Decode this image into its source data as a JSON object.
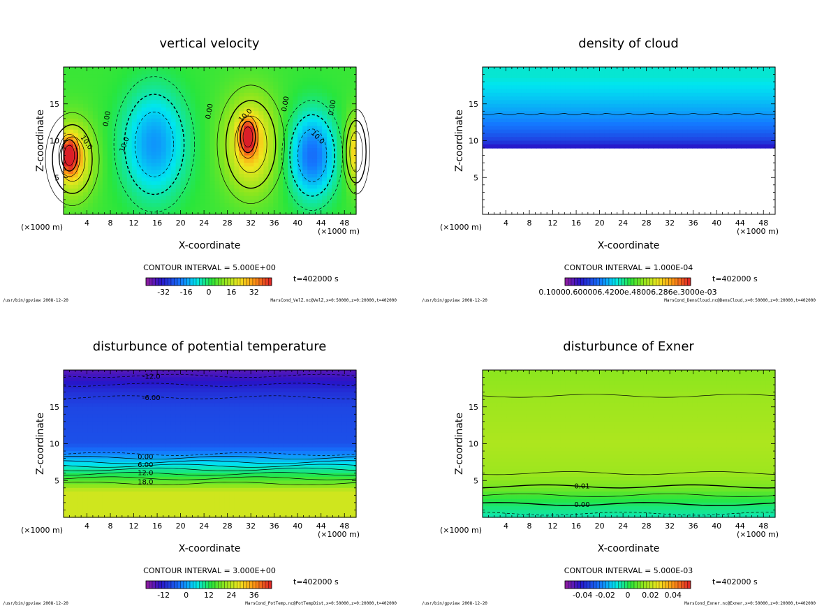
{
  "footer_left": "/usr/bin/gpview  2008-12-20",
  "x_unit_label": "(×1000 m)",
  "x_axis_label": "X-coordinate",
  "y_axis_label": "Z-coordinate",
  "time_label": "t=402000 s",
  "chart_data": [
    {
      "id": "velz",
      "type": "heatmap",
      "title": "vertical velocity",
      "xlabel": "X-coordinate",
      "ylabel": "Z-coordinate",
      "x_unit": "(×1000 m)",
      "xlim": [
        0,
        50
      ],
      "ylim": [
        0,
        20
      ],
      "xticks": [
        4,
        8,
        12,
        16,
        20,
        24,
        28,
        32,
        36,
        40,
        44,
        48
      ],
      "yticks": [
        5,
        10,
        15
      ],
      "contour_interval": "CONTOUR INTERVAL = 5.000E+00",
      "colorbar_ticks": [
        "-32",
        "-16",
        "0",
        "16",
        "32"
      ],
      "colorbar_range": [
        -40,
        40
      ],
      "time": "t=402000 s",
      "footer_right": "MarsCond_VelZ.nc@VelZ,x=0:50000,z=0:20000,t=402000",
      "field": {
        "background": 3,
        "cells": [
          {
            "x": 1.5,
            "z": 7.5,
            "rx": 4,
            "rz": 5.5,
            "v": 20
          },
          {
            "x": 1.0,
            "z": 8.0,
            "rx": 1.6,
            "rz": 2.5,
            "v": 30
          },
          {
            "x": 15.5,
            "z": 9.5,
            "rx": 6,
            "rz": 8,
            "v": -18
          },
          {
            "x": 32.0,
            "z": 9.5,
            "rx": 5,
            "rz": 7,
            "v": 20
          },
          {
            "x": 31.5,
            "z": 10.5,
            "rx": 1.5,
            "rz": 2.5,
            "v": 30
          },
          {
            "x": 42.5,
            "z": 8.0,
            "rx": 4.5,
            "rz": 6.5,
            "v": -22
          },
          {
            "x": 50.0,
            "z": 8.5,
            "rx": 2,
            "rz": 5,
            "v": 20
          }
        ]
      },
      "contour_labels": [
        {
          "text": "0.00",
          "x": 7.3,
          "z": 13.0,
          "rot": -80
        },
        {
          "text": "10.0",
          "x": 4.0,
          "z": 9.8,
          "rot": 55
        },
        {
          "text": "10.0",
          "x": 10.3,
          "z": 9.5,
          "rot": -70
        },
        {
          "text": "0.00",
          "x": 24.8,
          "z": 14.0,
          "rot": -80
        },
        {
          "text": "10.0",
          "x": 31.0,
          "z": 13.5,
          "rot": -45
        },
        {
          "text": "0.00",
          "x": 37.8,
          "z": 15.0,
          "rot": -80
        },
        {
          "text": "10.0",
          "x": 43.5,
          "z": 10.5,
          "rot": 45
        },
        {
          "text": "0.00",
          "x": 45.8,
          "z": 14.5,
          "rot": -80
        }
      ]
    },
    {
      "id": "denscloud",
      "type": "heatmap",
      "title": "density of cloud",
      "xlabel": "X-coordinate",
      "ylabel": "Z-coordinate",
      "x_unit": "(×1000 m)",
      "xlim": [
        0,
        50
      ],
      "ylim": [
        0,
        20
      ],
      "xticks": [
        4,
        8,
        12,
        16,
        20,
        24,
        28,
        32,
        36,
        40,
        44,
        48
      ],
      "yticks": [
        5,
        10,
        15
      ],
      "contour_interval": "CONTOUR INTERVAL = 1.000E-04",
      "colorbar_ticks": [
        "0.10000.600006.4200e.48006.286e.3000e-03"
      ],
      "colorbar_range": [
        0,
        1
      ],
      "time": "t=402000 s",
      "footer_right": "MarsCond_DensCloud.nc@DensCloud,x=0:50000,z=0:20000,t=402000",
      "cloud_base_z": 9.0,
      "cloud_top_z": 20.0,
      "contour_z": 13.6
    },
    {
      "id": "pottemp",
      "type": "heatmap",
      "title": "disturbunce of potential temperature",
      "xlabel": "X-coordinate",
      "ylabel": "Z-coordinate",
      "x_unit": "(×1000 m)",
      "xlim": [
        0,
        50
      ],
      "ylim": [
        0,
        20
      ],
      "xticks": [
        4,
        8,
        12,
        16,
        20,
        24,
        28,
        32,
        36,
        40,
        44,
        48
      ],
      "yticks": [
        5,
        10,
        15
      ],
      "contour_interval": "CONTOUR INTERVAL = 3.000E+00",
      "colorbar_ticks": [
        "-12",
        "0",
        "12",
        "24",
        "36"
      ],
      "colorbar_range": [
        -18,
        42
      ],
      "time": "t=402000 s",
      "footer_right": "MarsCond_PotTemp.nc@PotTempDist,x=0:50000,z=0:20000,t=402000",
      "profile": [
        {
          "z": 0,
          "v": 24
        },
        {
          "z": 3.5,
          "v": 24
        },
        {
          "z": 4.5,
          "v": 18
        },
        {
          "z": 6.5,
          "v": 9
        },
        {
          "z": 8.5,
          "v": 0
        },
        {
          "z": 10,
          "v": -5
        },
        {
          "z": 15,
          "v": -6
        },
        {
          "z": 17,
          "v": -8
        },
        {
          "z": 20,
          "v": -14
        }
      ],
      "contours": [
        {
          "z": 19.2,
          "dash": true
        },
        {
          "z": 18.0,
          "dash": true
        },
        {
          "z": 16.3,
          "dash": true
        },
        {
          "z": 8.6,
          "dash": true
        },
        {
          "z": 8.1,
          "dash": false
        },
        {
          "z": 7.5,
          "dash": false
        },
        {
          "z": 7.0,
          "dash": false
        },
        {
          "z": 6.5,
          "dash": false
        },
        {
          "z": 5.9,
          "dash": false
        },
        {
          "z": 5.3,
          "dash": false
        },
        {
          "z": 4.6,
          "dash": false
        }
      ],
      "contour_labels": [
        {
          "text": "-12.0",
          "x": 15,
          "z": 19.2
        },
        {
          "text": "-6.00",
          "x": 15,
          "z": 16.3
        },
        {
          "text": "0.00",
          "x": 14,
          "z": 8.3
        },
        {
          "text": "6.00",
          "x": 14,
          "z": 7.2
        },
        {
          "text": "12.0",
          "x": 14,
          "z": 6.1
        },
        {
          "text": "18.0",
          "x": 14,
          "z": 4.9
        }
      ]
    },
    {
      "id": "exner",
      "type": "heatmap",
      "title": "disturbunce of Exner",
      "xlabel": "X-coordinate",
      "ylabel": "Z-coordinate",
      "x_unit": "(×1000 m)",
      "xlim": [
        0,
        50
      ],
      "ylim": [
        0,
        20
      ],
      "xticks": [
        4,
        8,
        12,
        16,
        20,
        24,
        28,
        32,
        36,
        40,
        44,
        48
      ],
      "yticks": [
        5,
        10,
        15
      ],
      "contour_interval": "CONTOUR INTERVAL = 5.000E-03",
      "colorbar_ticks": [
        "-0.04",
        "-0.02",
        "0",
        "0.02",
        "0.04"
      ],
      "colorbar_range": [
        -0.05,
        0.05
      ],
      "time": "t=402000 s",
      "footer_right": "MarsCond_Exner.nc@Exner,x=0:50000,z=0:20000,t=402000",
      "profile": [
        {
          "z": 0,
          "v": -0.006
        },
        {
          "z": 2,
          "v": 0.0
        },
        {
          "z": 4,
          "v": 0.01
        },
        {
          "z": 6,
          "v": 0.014
        },
        {
          "z": 10,
          "v": 0.016
        },
        {
          "z": 16,
          "v": 0.014
        },
        {
          "z": 20,
          "v": 0.012
        }
      ],
      "contours": [
        {
          "z": 16.5,
          "dash": false
        },
        {
          "z": 6.0,
          "dash": false
        },
        {
          "z": 4.2,
          "dash": false,
          "bold": true
        },
        {
          "z": 3.0,
          "dash": false
        },
        {
          "z": 1.8,
          "dash": false,
          "bold": true
        },
        {
          "z": 0.5,
          "dash": true
        }
      ],
      "contour_labels": [
        {
          "text": "0.01",
          "x": 17,
          "z": 4.3
        },
        {
          "text": "0.00",
          "x": 17,
          "z": 1.8
        }
      ]
    }
  ]
}
